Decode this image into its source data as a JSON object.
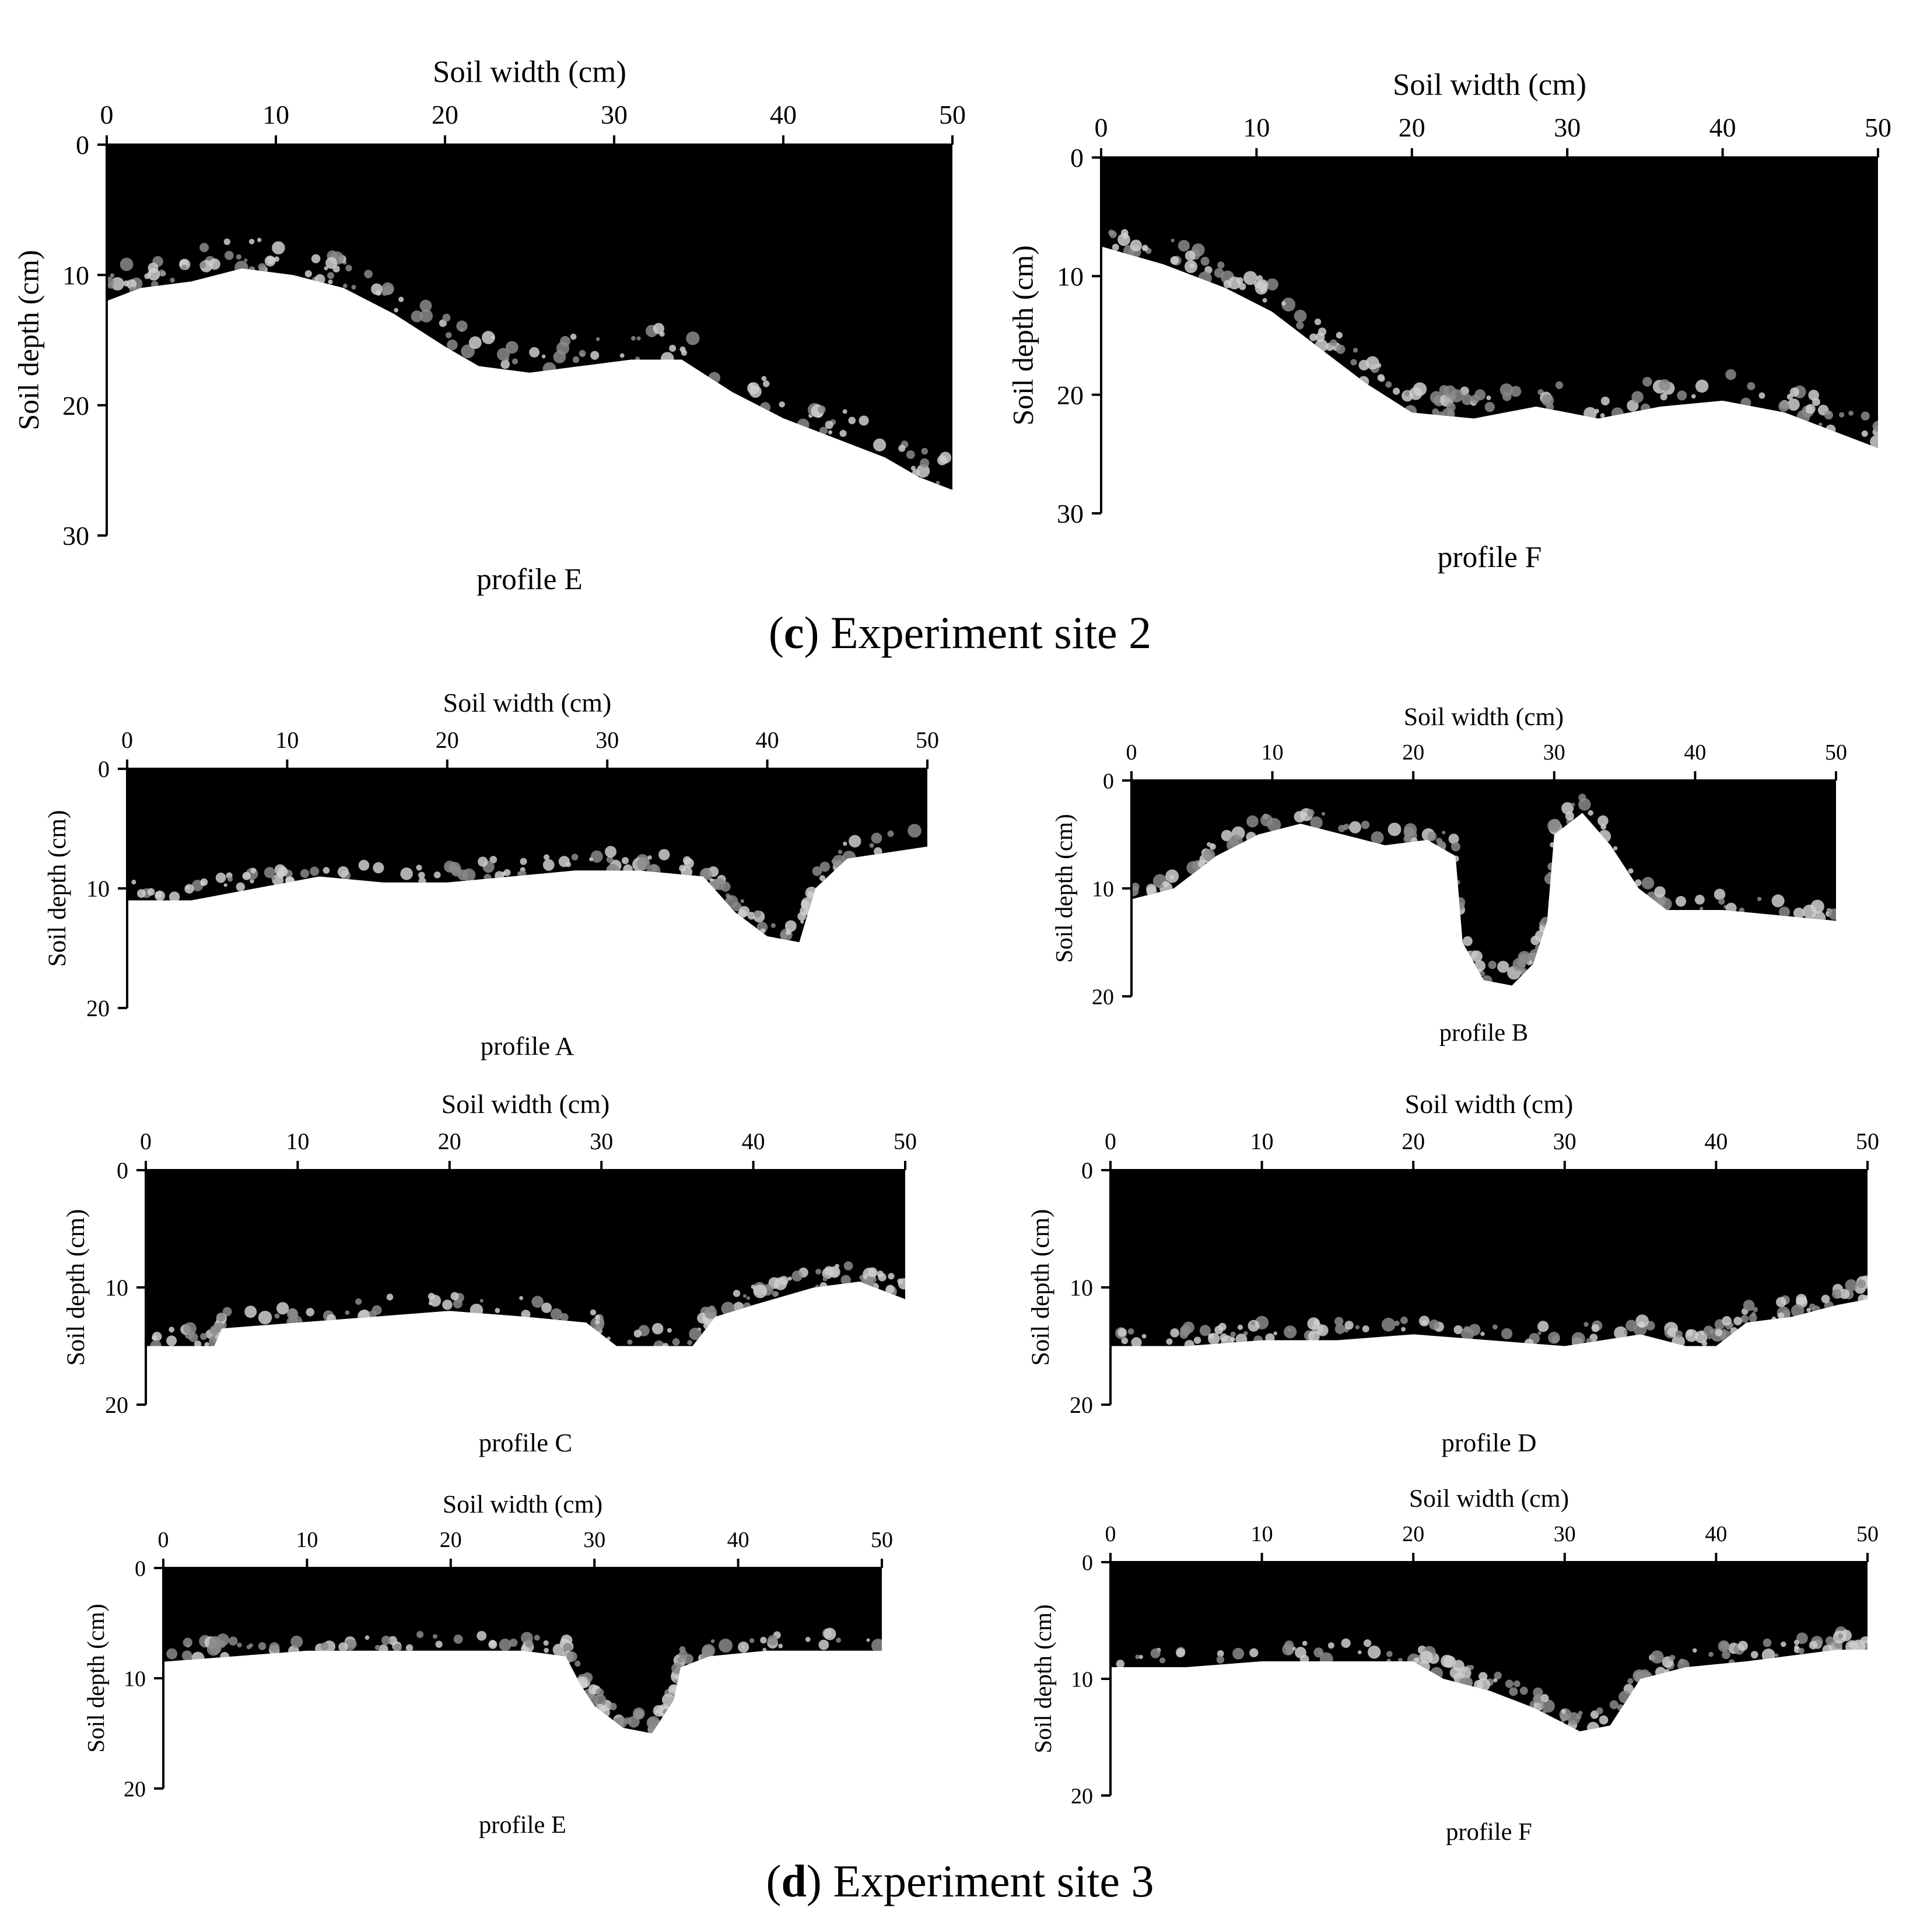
{
  "sections": [
    {
      "caption_letter": "c",
      "caption_text": "Experiment site 2",
      "panels": [
        {
          "profile_label": "profile E",
          "x_axis_label": "Soil width (cm)",
          "y_axis_label": "Soil depth (cm)",
          "x_ticks": [
            "0",
            "10",
            "20",
            "30",
            "40",
            "50"
          ],
          "y_ticks": [
            "0",
            "10",
            "20",
            "30"
          ],
          "x_range": [
            0,
            50
          ],
          "y_range": [
            0,
            30
          ],
          "stain_boundary_depth": [
            [
              0,
              12
            ],
            [
              2,
              11
            ],
            [
              5,
              10.5
            ],
            [
              8,
              9.5
            ],
            [
              11,
              10
            ],
            [
              14,
              11
            ],
            [
              17,
              13
            ],
            [
              20,
              15.5
            ],
            [
              22,
              17
            ],
            [
              25,
              17.5
            ],
            [
              28,
              17
            ],
            [
              31,
              16.5
            ],
            [
              34,
              16.5
            ],
            [
              37,
              19
            ],
            [
              40,
              21
            ],
            [
              43,
              22.5
            ],
            [
              46,
              24
            ],
            [
              48,
              25.5
            ],
            [
              50,
              26.5
            ]
          ]
        },
        {
          "profile_label": "profile F",
          "x_axis_label": "Soil width (cm)",
          "y_axis_label": "Soil depth (cm)",
          "x_ticks": [
            "0",
            "10",
            "20",
            "30",
            "40",
            "50"
          ],
          "y_ticks": [
            "0",
            "10",
            "20",
            "30"
          ],
          "x_range": [
            0,
            50
          ],
          "y_range": [
            0,
            30
          ],
          "stain_boundary_depth": [
            [
              0,
              7.5
            ],
            [
              4,
              9
            ],
            [
              8,
              11
            ],
            [
              11,
              13
            ],
            [
              14,
              16
            ],
            [
              17,
              19
            ],
            [
              20,
              21.5
            ],
            [
              24,
              22
            ],
            [
              28,
              21
            ],
            [
              32,
              22
            ],
            [
              36,
              21
            ],
            [
              40,
              20.5
            ],
            [
              44,
              21.5
            ],
            [
              47,
              23
            ],
            [
              50,
              24.5
            ]
          ]
        }
      ]
    },
    {
      "caption_letter": "d",
      "caption_text": "Experiment site 3",
      "panels": [
        {
          "profile_label": "profile A",
          "x_axis_label": "Soil width (cm)",
          "y_axis_label": "Soil depth (cm)",
          "x_ticks": [
            "0",
            "10",
            "20",
            "30",
            "40",
            "50"
          ],
          "y_ticks": [
            "0",
            "10",
            "20"
          ],
          "x_range": [
            0,
            50
          ],
          "y_range": [
            0,
            20
          ],
          "stain_boundary_depth": [
            [
              0,
              11
            ],
            [
              4,
              11
            ],
            [
              8,
              10
            ],
            [
              12,
              9
            ],
            [
              16,
              9.5
            ],
            [
              20,
              9.5
            ],
            [
              24,
              9
            ],
            [
              28,
              8.5
            ],
            [
              32,
              8.5
            ],
            [
              36,
              9
            ],
            [
              38,
              12
            ],
            [
              40,
              14
            ],
            [
              42,
              14.5
            ],
            [
              43,
              10
            ],
            [
              45,
              7.5
            ],
            [
              50,
              6.5
            ]
          ]
        },
        {
          "profile_label": "profile B",
          "x_axis_label": "Soil width (cm)",
          "y_axis_label": "Soil depth (cm)",
          "x_ticks": [
            "0",
            "10",
            "20",
            "30",
            "40",
            "50"
          ],
          "y_ticks": [
            "0",
            "10",
            "20"
          ],
          "x_range": [
            0,
            50
          ],
          "y_range": [
            0,
            20
          ],
          "stain_boundary_depth": [
            [
              0,
              11
            ],
            [
              3,
              10
            ],
            [
              6,
              7
            ],
            [
              9,
              5
            ],
            [
              12,
              4
            ],
            [
              15,
              5
            ],
            [
              18,
              6
            ],
            [
              21,
              5.5
            ],
            [
              23,
              7
            ],
            [
              23.5,
              15
            ],
            [
              25,
              18.5
            ],
            [
              27,
              19
            ],
            [
              28.5,
              17
            ],
            [
              29.5,
              13
            ],
            [
              30,
              5
            ],
            [
              32,
              3
            ],
            [
              34,
              6
            ],
            [
              36,
              10
            ],
            [
              38,
              12
            ],
            [
              42,
              12
            ],
            [
              46,
              12.5
            ],
            [
              50,
              13
            ]
          ]
        },
        {
          "profile_label": "profile C",
          "x_axis_label": "Soil width (cm)",
          "y_axis_label": "Soil depth (cm)",
          "x_ticks": [
            "0",
            "10",
            "20",
            "30",
            "40",
            "50"
          ],
          "y_ticks": [
            "0",
            "10",
            "20"
          ],
          "x_range": [
            0,
            50
          ],
          "y_range": [
            0,
            20
          ],
          "stain_boundary_depth": [
            [
              0,
              15
            ],
            [
              4.5,
              15
            ],
            [
              5,
              13.5
            ],
            [
              10,
              13
            ],
            [
              15,
              12.5
            ],
            [
              20,
              12
            ],
            [
              25,
              12.5
            ],
            [
              29,
              13
            ],
            [
              31,
              15
            ],
            [
              36,
              15
            ],
            [
              37.5,
              12.5
            ],
            [
              40,
              11.5
            ],
            [
              44,
              10
            ],
            [
              47,
              9.5
            ],
            [
              50,
              11
            ]
          ]
        },
        {
          "profile_label": "profile D",
          "x_axis_label": "Soil width (cm)",
          "y_axis_label": "Soil depth (cm)",
          "x_ticks": [
            "0",
            "10",
            "20",
            "30",
            "40",
            "50"
          ],
          "y_ticks": [
            "0",
            "10",
            "20"
          ],
          "x_range": [
            0,
            50
          ],
          "y_range": [
            0,
            20
          ],
          "stain_boundary_depth": [
            [
              0,
              15
            ],
            [
              5,
              15
            ],
            [
              10,
              14.5
            ],
            [
              15,
              14.5
            ],
            [
              20,
              14
            ],
            [
              25,
              14.5
            ],
            [
              30,
              15
            ],
            [
              35,
              14
            ],
            [
              38,
              15
            ],
            [
              40,
              15
            ],
            [
              42,
              13
            ],
            [
              45,
              12.5
            ],
            [
              48,
              11.5
            ],
            [
              50,
              11
            ]
          ]
        },
        {
          "profile_label": "profile E",
          "x_axis_label": "Soil width (cm)",
          "y_axis_label": "Soil depth (cm)",
          "x_ticks": [
            "0",
            "10",
            "20",
            "30",
            "40",
            "50"
          ],
          "y_ticks": [
            "0",
            "10",
            "20"
          ],
          "x_range": [
            0,
            50
          ],
          "y_range": [
            0,
            20
          ],
          "stain_boundary_depth": [
            [
              0,
              8.5
            ],
            [
              5,
              8
            ],
            [
              10,
              7.5
            ],
            [
              15,
              7.5
            ],
            [
              20,
              7.5
            ],
            [
              25,
              7.5
            ],
            [
              28,
              8
            ],
            [
              29,
              10.5
            ],
            [
              30,
              12.5
            ],
            [
              32,
              14.5
            ],
            [
              34,
              15
            ],
            [
              35.5,
              12
            ],
            [
              36,
              9
            ],
            [
              38,
              8
            ],
            [
              42,
              7.5
            ],
            [
              46,
              7.5
            ],
            [
              50,
              7.5
            ]
          ]
        },
        {
          "profile_label": "profile F",
          "x_axis_label": "Soil width (cm)",
          "y_axis_label": "Soil depth (cm)",
          "x_ticks": [
            "0",
            "10",
            "20",
            "30",
            "40",
            "50"
          ],
          "y_ticks": [
            "0",
            "10",
            "20"
          ],
          "x_range": [
            0,
            50
          ],
          "y_range": [
            0,
            20
          ],
          "stain_boundary_depth": [
            [
              0,
              9
            ],
            [
              5,
              9
            ],
            [
              10,
              8.5
            ],
            [
              15,
              8.5
            ],
            [
              20,
              8.5
            ],
            [
              22,
              10
            ],
            [
              25,
              11
            ],
            [
              28,
              12.5
            ],
            [
              31,
              14.5
            ],
            [
              33,
              14
            ],
            [
              35,
              10
            ],
            [
              38,
              9
            ],
            [
              42,
              8.5
            ],
            [
              45,
              8
            ],
            [
              48,
              7.5
            ],
            [
              50,
              7.5
            ]
          ]
        }
      ]
    }
  ]
}
